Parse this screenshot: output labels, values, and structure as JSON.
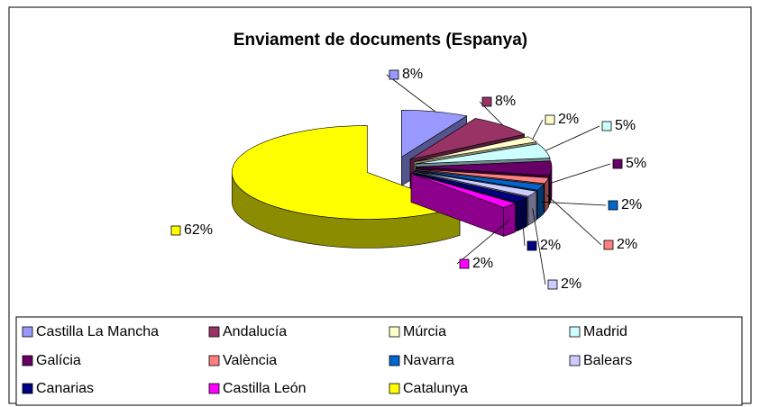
{
  "chart_data": {
    "type": "pie3d",
    "title": "Enviament de documents (Espanya)",
    "categories": [
      "Castilla La Mancha",
      "Andalucía",
      "Múrcia",
      "Madrid",
      "Galícia",
      "València",
      "Navarra",
      "Balears",
      "Canarias",
      "Castilla León",
      "Catalunya"
    ],
    "values": [
      8,
      8,
      2,
      5,
      5,
      2,
      2,
      2,
      2,
      2,
      62
    ],
    "value_labels": [
      "8%",
      "8%",
      "2%",
      "5%",
      "5%",
      "2%",
      "2%",
      "2%",
      "2%",
      "2%",
      "62%"
    ],
    "colors": [
      "#9999ff",
      "#993366",
      "#ffffcc",
      "#ccffff",
      "#660066",
      "#ff8080",
      "#0066cc",
      "#ccccff",
      "#000080",
      "#ff00ff",
      "#ffff00"
    ],
    "legend": "bottom"
  }
}
